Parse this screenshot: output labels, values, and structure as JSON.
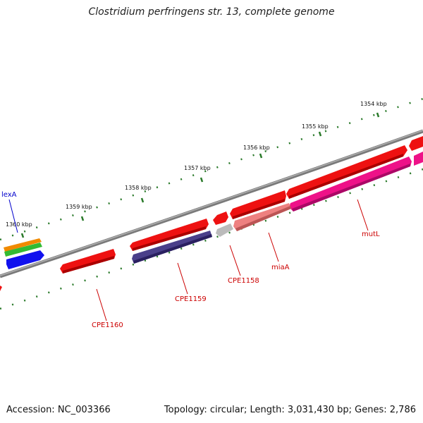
{
  "title": "Clostridium perfringens str. 13, complete genome",
  "accession": "Accession: NC_003366",
  "topology": "Topology: circular; Length: 3,031,430 bp; Genes: 2,786",
  "ticks": [
    {
      "label": "1354 kbp"
    },
    {
      "label": "1355 kbp"
    },
    {
      "label": "1356 kbp"
    },
    {
      "label": "1357 kbp"
    },
    {
      "label": "1358 kbp"
    },
    {
      "label": "1359 kbp"
    },
    {
      "label": "1360 kbp"
    }
  ],
  "genes": [
    {
      "label": "lexA",
      "color": "#0000cc"
    },
    {
      "label": "CPE1160",
      "color": "#cc0000"
    },
    {
      "label": "CPE1159",
      "color": "#cc0000"
    },
    {
      "label": "CPE1158",
      "color": "#cc0000"
    },
    {
      "label": "miaA",
      "color": "#cc0000"
    },
    {
      "label": "mutL",
      "color": "#cc0000"
    }
  ],
  "colors": {
    "backbone": "#7a7a7a",
    "tick_dots": "#2a7a2a",
    "forward_red": "#ee1111",
    "reverse_red": "#ee2222",
    "navy": "#4a3f8a",
    "magenta": "#ee1188",
    "salmon": "#ee8080",
    "gray": "#bbbbbb",
    "orange": "#f08a00",
    "green": "#33bb33",
    "blue": "#1111ee"
  }
}
